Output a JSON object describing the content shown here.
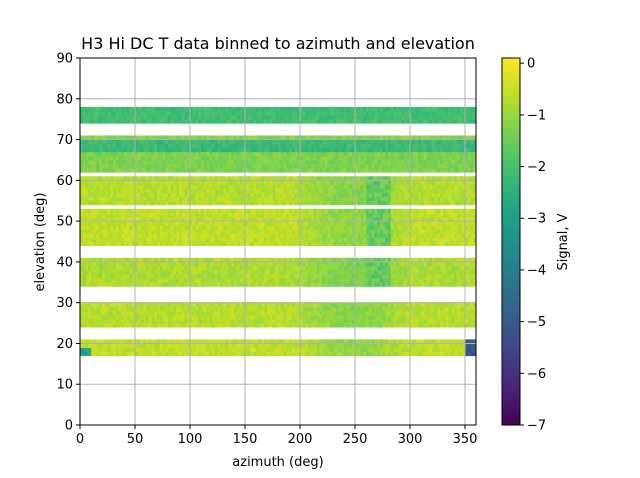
{
  "chart_data": {
    "type": "heatmap",
    "title": "H3 Hi DC T data binned to azimuth and elevation",
    "xlabel": "azimuth (deg)",
    "ylabel": "elevation (deg)",
    "xlim": [
      0,
      360
    ],
    "ylim": [
      0,
      90
    ],
    "xticks": [
      "0",
      "50",
      "100",
      "150",
      "200",
      "250",
      "300",
      "350"
    ],
    "yticks": [
      "0",
      "10",
      "20",
      "30",
      "40",
      "50",
      "60",
      "70",
      "80",
      "90"
    ],
    "grid": true,
    "colormap": "viridis",
    "colorbar": {
      "label": "Signal, V",
      "range": [
        -7,
        0.1
      ],
      "ticks": [
        "0",
        "−1",
        "−2",
        "−3",
        "−4",
        "−5",
        "−6",
        "−7"
      ]
    },
    "bands": [
      {
        "elev": [
          17,
          21
        ],
        "signal": -0.6
      },
      {
        "elev": [
          24,
          30
        ],
        "signal": -0.7
      },
      {
        "elev": [
          34,
          41
        ],
        "signal": -0.8
      },
      {
        "elev": [
          44,
          53
        ],
        "signal": -0.6
      },
      {
        "elev": [
          54,
          61
        ],
        "signal": -0.7
      },
      {
        "elev": [
          62,
          67
        ],
        "signal": -1.3
      },
      {
        "elev": [
          67,
          70
        ],
        "signal": -2.2
      },
      {
        "elev": [
          70,
          71
        ],
        "signal": -1.2
      },
      {
        "elev": [
          74,
          78
        ],
        "signal": -2.1
      }
    ],
    "features": [
      {
        "az": [
          260,
          282
        ],
        "elev": [
          34,
          61
        ],
        "signal": -1.6
      },
      {
        "az": [
          350,
          360
        ],
        "elev": [
          17,
          21
        ],
        "signal": -5.0
      },
      {
        "az": [
          0,
          10
        ],
        "elev": [
          17,
          19
        ],
        "signal": -3.0
      }
    ]
  }
}
